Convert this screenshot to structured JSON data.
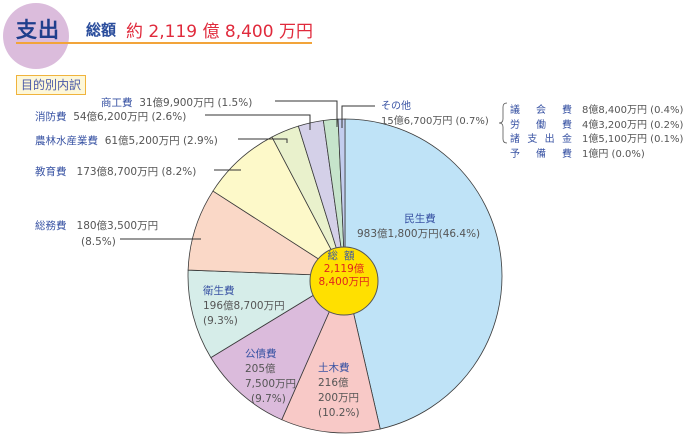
{
  "header": {
    "title": "支出",
    "total_label": "総額",
    "total_value": "約 2,119 億 8,400 万円"
  },
  "section_badge": "目的別内訳",
  "center_label": {
    "line1": "総額",
    "line2": "2,119億",
    "line3": "8,400万円"
  },
  "labels": {
    "minsei": {
      "name": "民生費",
      "value": "983億1,800万円(46.4%)"
    },
    "doboku": {
      "name": "土木費",
      "v1": "216億",
      "v2": "200万円",
      "v3": "(10.2%)"
    },
    "kosai": {
      "name": "公債費",
      "v1": "205億",
      "v2": "7,500万円",
      "v3": "(9.7%)"
    },
    "eisei": {
      "name": "衛生費",
      "v1": "196億8,700万円",
      "v2": "(9.3%)"
    },
    "somu": {
      "name": "総務費",
      "v1": "180億3,500万円",
      "v2": "(8.5%)"
    },
    "kyoiku": {
      "name": "教育費",
      "value": "173億8,700万円 (8.2%)"
    },
    "norin": {
      "name": "農林水産業費",
      "value": "61億5,200万円 (2.9%)"
    },
    "shobo": {
      "name": "消防費",
      "value": "54億6,200万円 (2.6%)"
    },
    "shoko": {
      "name": "商工費",
      "value": "31億9,900万円 (1.5%)"
    },
    "sonota": {
      "name": "その他",
      "value": "15億6,700万円 (0.7%)"
    }
  },
  "sonota_breakdown": [
    {
      "name": [
        "議",
        "会",
        "費"
      ],
      "value": "8億8,400万円 (0.4%)"
    },
    {
      "name": [
        "労",
        "働",
        "費"
      ],
      "value": "4億3,200万円 (0.2%)"
    },
    {
      "name": [
        "諸",
        "支",
        "出",
        "金"
      ],
      "value": "1億5,100万円 (0.1%)"
    },
    {
      "name": [
        "予",
        "備",
        "費"
      ],
      "value": "1億円 (0.0%)"
    }
  ],
  "chart_data": {
    "type": "pie",
    "title": "支出 総額 約2,119億8,400万円 目的別内訳",
    "unit": "億円",
    "start_angle_deg": 0,
    "direction": "clockwise",
    "categories": [
      "民生費",
      "土木費",
      "公債費",
      "衛生費",
      "総務費",
      "教育費",
      "農林水産業費",
      "消防費",
      "商工費",
      "その他"
    ],
    "values": [
      983.18,
      216.02,
      205.75,
      196.87,
      180.35,
      173.87,
      61.52,
      54.62,
      31.99,
      15.67
    ],
    "percent": [
      46.4,
      10.2,
      9.7,
      9.3,
      8.5,
      8.2,
      2.9,
      2.6,
      1.5,
      0.7
    ],
    "colors": [
      "#bfe3f7",
      "#f8c9c7",
      "#dbbbdc",
      "#d6ede9",
      "#fad8c7",
      "#fdf9c9",
      "#e9f1cc",
      "#d4d0e8",
      "#c6e4cb",
      "#c3cdee"
    ],
    "total": "2,119億8,400万円",
    "sonota_breakdown": {
      "categories": [
        "議会費",
        "労働費",
        "諸支出金",
        "予備費"
      ],
      "values": [
        8.84,
        4.32,
        1.51,
        1.0
      ],
      "percent": [
        0.4,
        0.2,
        0.1,
        0.0
      ]
    }
  }
}
